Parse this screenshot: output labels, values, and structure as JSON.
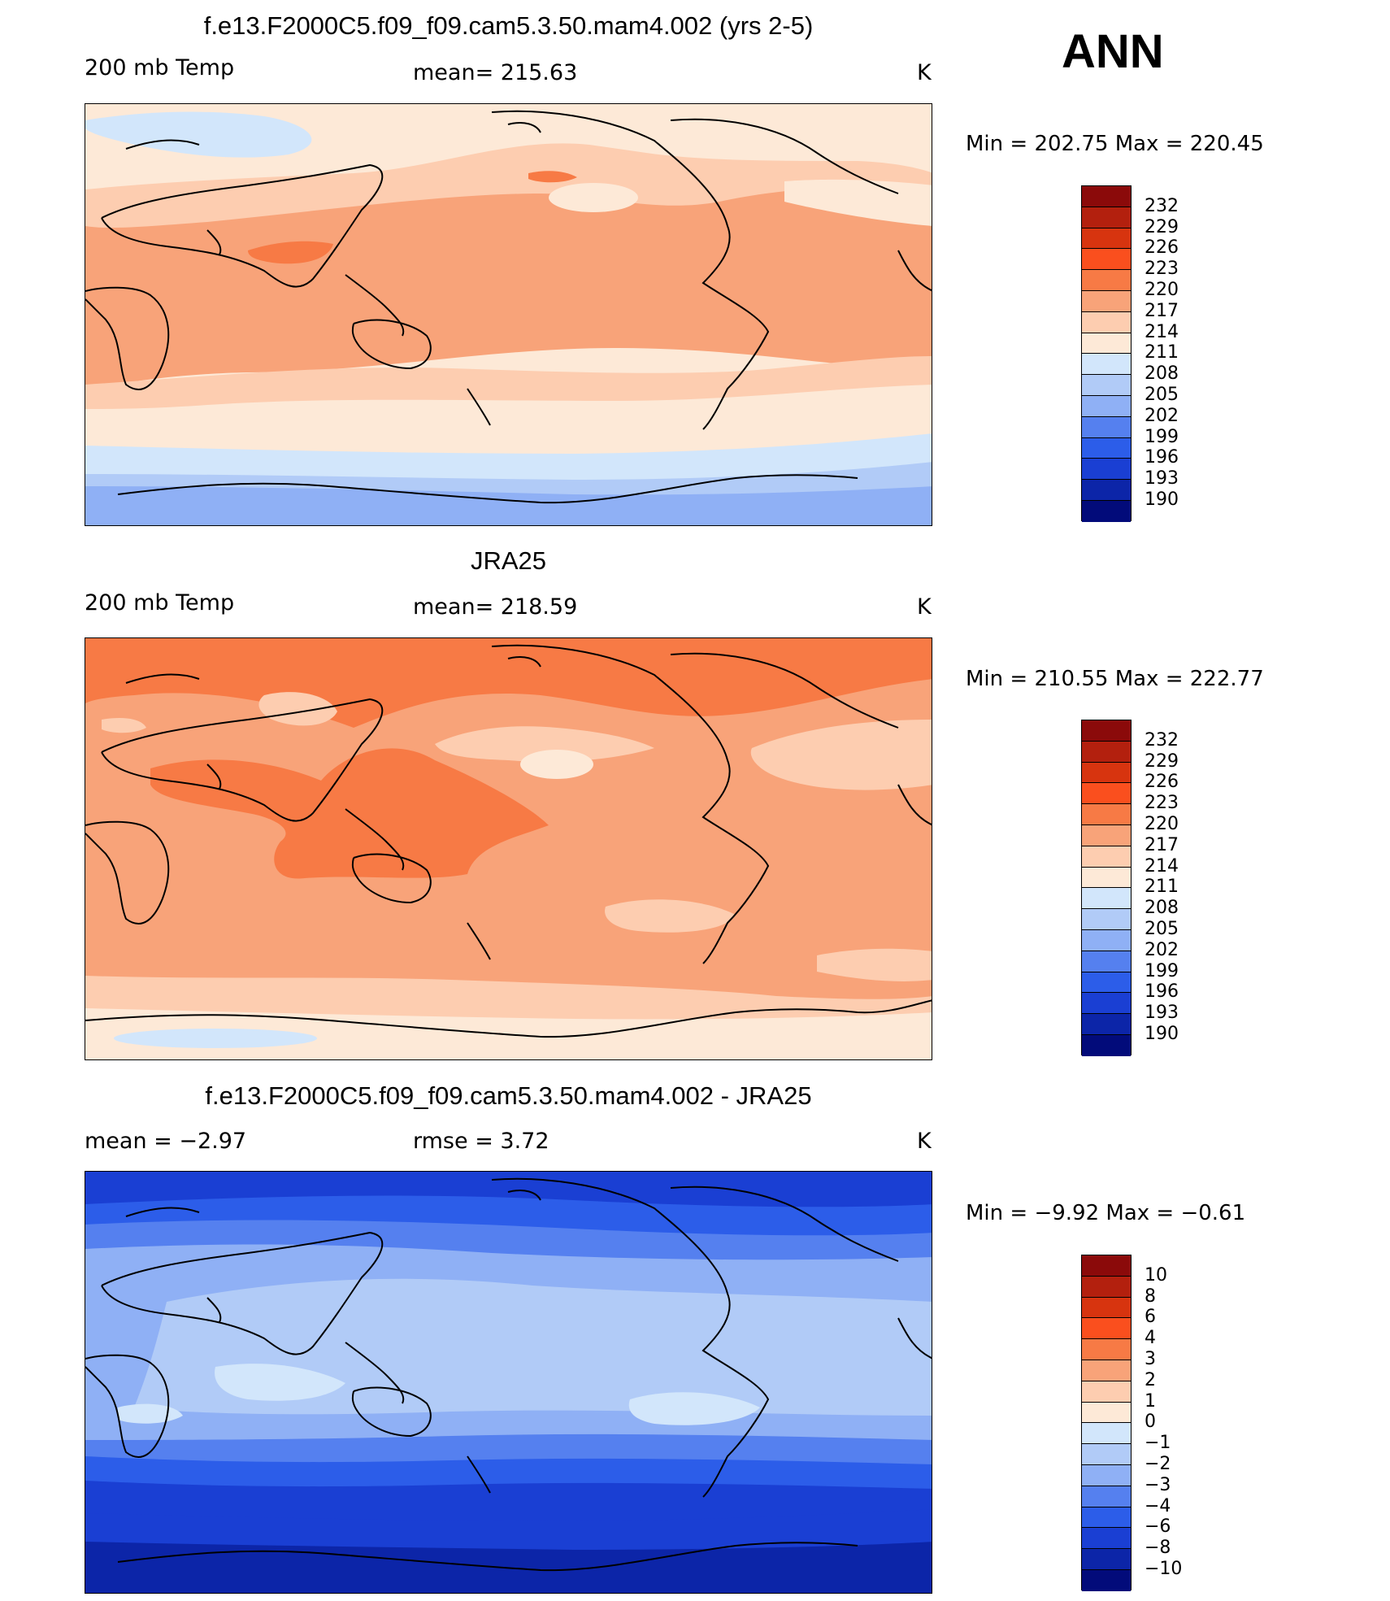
{
  "header": {
    "season": "ANN"
  },
  "panels": [
    {
      "title": "f.e13.F2000C5.f09_f09.cam5.3.50.mam4.002 (yrs 2-5)",
      "left_label": "200 mb Temp",
      "center_label": "mean= 215.63",
      "units": "K",
      "minmax": "Min = 202.75 Max = 220.45",
      "colorbar_labels": [
        "232",
        "229",
        "226",
        "223",
        "220",
        "217",
        "214",
        "211",
        "208",
        "205",
        "202",
        "199",
        "196",
        "193",
        "190"
      ],
      "colorbar_colors": [
        "#8b0a0a",
        "#b3200e",
        "#d7340f",
        "#fa4f1e",
        "#f77a45",
        "#f8a379",
        "#fdcdb0",
        "#fde9d7",
        "#d2e6fb",
        "#b1cbf7",
        "#8fb0f5",
        "#5580ef",
        "#2c5de9",
        "#1a3fd3",
        "#0c25a8",
        "#020b7a"
      ],
      "map_colors": {
        "warm3": "#f77a45",
        "warm2": "#f8a379",
        "warm1": "#fdcdb0",
        "warm0": "#fde9d7",
        "cool0": "#d2e6fb",
        "cool1": "#b1cbf7",
        "cool2": "#8fb0f5"
      }
    },
    {
      "title": "JRA25",
      "left_label": "200 mb Temp",
      "center_label": "mean= 218.59",
      "units": "K",
      "minmax": "Min = 210.55 Max = 222.77",
      "colorbar_labels": [
        "232",
        "229",
        "226",
        "223",
        "220",
        "217",
        "214",
        "211",
        "208",
        "205",
        "202",
        "199",
        "196",
        "193",
        "190"
      ],
      "colorbar_colors": [
        "#8b0a0a",
        "#b3200e",
        "#d7340f",
        "#fa4f1e",
        "#f77a45",
        "#f8a379",
        "#fdcdb0",
        "#fde9d7",
        "#d2e6fb",
        "#b1cbf7",
        "#8fb0f5",
        "#5580ef",
        "#2c5de9",
        "#1a3fd3",
        "#0c25a8",
        "#020b7a"
      ]
    },
    {
      "title": "f.e13.F2000C5.f09_f09.cam5.3.50.mam4.002 - JRA25",
      "left_label": "mean =   −2.97",
      "center_label": "rmse =    3.72",
      "units": "K",
      "minmax": "Min =   −9.92 Max =   −0.61",
      "colorbar_labels": [
        "10",
        "8",
        "6",
        "4",
        "3",
        "2",
        "1",
        "0",
        "−1",
        "−2",
        "−3",
        "−4",
        "−6",
        "−8",
        "−10"
      ],
      "colorbar_colors": [
        "#8b0a0a",
        "#b3200e",
        "#d7340f",
        "#fa4f1e",
        "#f77a45",
        "#f8a379",
        "#fdcdb0",
        "#fde9d7",
        "#d2e6fb",
        "#b1cbf7",
        "#8fb0f5",
        "#5580ef",
        "#2c5de9",
        "#1a3fd3",
        "#0c25a8",
        "#020b7a"
      ]
    }
  ]
}
